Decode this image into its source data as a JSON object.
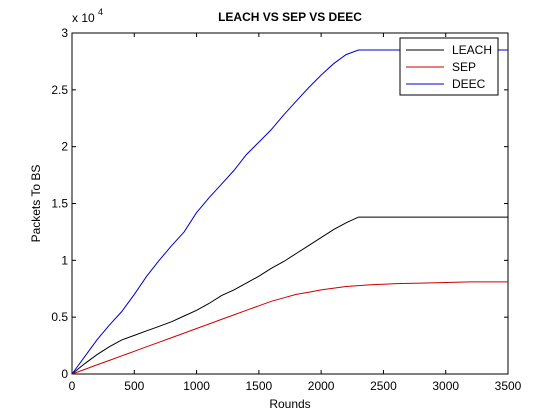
{
  "chart_data": {
    "type": "line",
    "title": "LEACH VS SEP VS DEEC",
    "xlabel": "Rounds",
    "ylabel": "Packets To BS",
    "y_multiplier": "x 10",
    "y_multiplier_exponent": "4",
    "xlim": [
      0,
      3500
    ],
    "ylim": [
      0,
      3
    ],
    "xticks": [
      0,
      500,
      1000,
      1500,
      2000,
      2500,
      3000,
      3500
    ],
    "yticks": [
      0,
      0.5,
      1,
      1.5,
      2,
      2.5,
      3
    ],
    "grid": false,
    "legend_position": "top-right",
    "series": [
      {
        "name": "LEACH",
        "color": "#000000",
        "x": [
          0,
          100,
          200,
          300,
          400,
          500,
          600,
          700,
          800,
          900,
          1000,
          1100,
          1200,
          1300,
          1400,
          1500,
          1600,
          1700,
          1800,
          1900,
          2000,
          2100,
          2200,
          2300,
          2350,
          2400,
          2500,
          3000,
          3500
        ],
        "y": [
          0,
          0.09,
          0.17,
          0.24,
          0.3,
          0.34,
          0.38,
          0.42,
          0.46,
          0.51,
          0.56,
          0.62,
          0.69,
          0.74,
          0.8,
          0.86,
          0.93,
          0.99,
          1.06,
          1.13,
          1.2,
          1.27,
          1.33,
          1.38,
          1.38,
          1.38,
          1.38,
          1.38,
          1.38
        ]
      },
      {
        "name": "SEP",
        "color": "#cc0000",
        "x": [
          0,
          100,
          200,
          300,
          400,
          500,
          600,
          700,
          800,
          900,
          1000,
          1100,
          1200,
          1300,
          1400,
          1500,
          1600,
          1700,
          1800,
          1900,
          2000,
          2200,
          2400,
          2600,
          2800,
          3000,
          3200,
          3500
        ],
        "y": [
          0,
          0.04,
          0.08,
          0.12,
          0.16,
          0.2,
          0.24,
          0.28,
          0.32,
          0.36,
          0.4,
          0.44,
          0.48,
          0.52,
          0.56,
          0.6,
          0.64,
          0.67,
          0.7,
          0.72,
          0.74,
          0.77,
          0.785,
          0.795,
          0.8,
          0.805,
          0.81,
          0.81
        ]
      },
      {
        "name": "DEEC",
        "color": "#0000cc",
        "x": [
          0,
          100,
          200,
          300,
          400,
          500,
          600,
          700,
          800,
          900,
          1000,
          1100,
          1200,
          1300,
          1400,
          1500,
          1600,
          1700,
          1800,
          1900,
          2000,
          2100,
          2200,
          2300,
          2400,
          2500,
          3000,
          3500
        ],
        "y": [
          0,
          0.15,
          0.3,
          0.43,
          0.55,
          0.7,
          0.86,
          1.0,
          1.13,
          1.25,
          1.42,
          1.55,
          1.67,
          1.79,
          1.93,
          2.04,
          2.15,
          2.28,
          2.4,
          2.52,
          2.63,
          2.73,
          2.81,
          2.85,
          2.85,
          2.85,
          2.85,
          2.85
        ]
      }
    ]
  }
}
